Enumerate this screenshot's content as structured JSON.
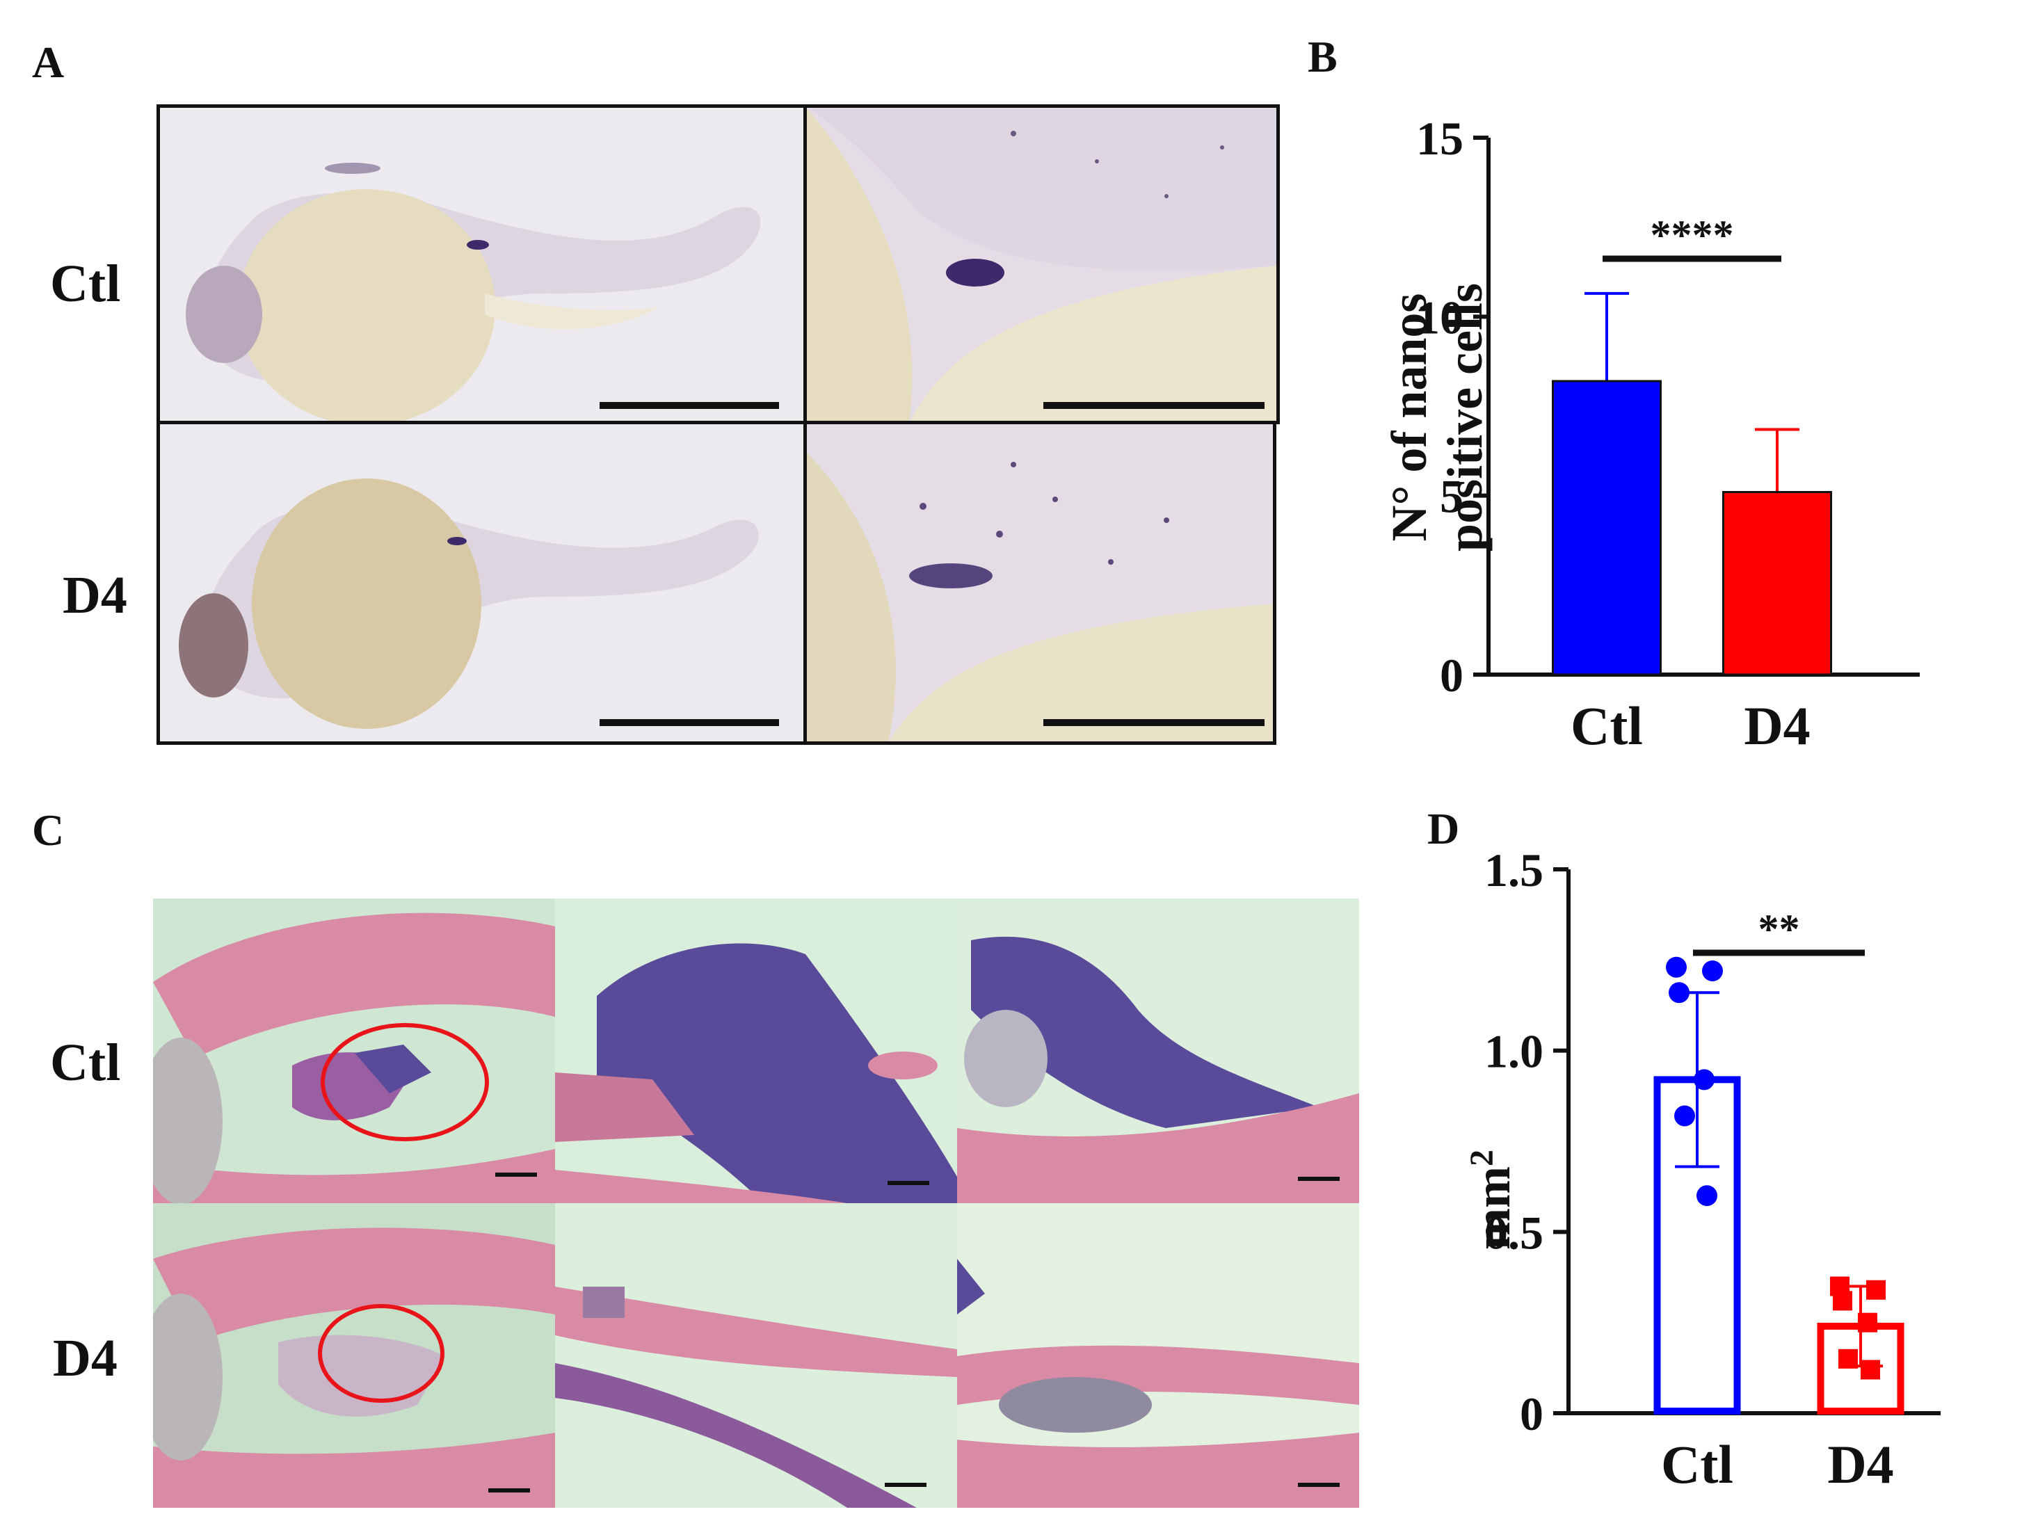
{
  "panels": {
    "a": {
      "letter": "A",
      "rows": [
        "Ctl",
        "D4"
      ]
    },
    "b": {
      "letter": "B"
    },
    "c": {
      "letter": "C",
      "rows": [
        "Ctl",
        "D4"
      ]
    },
    "d": {
      "letter": "D"
    }
  },
  "colors": {
    "ctl": "#0000ff",
    "d4": "#ff0000",
    "annotation": "#e8141a",
    "embryo_bg": "#ecebef",
    "yolk": "#e6dbbd",
    "embryo_tissue": "#d8cdd8",
    "stain": "#3c2a6a",
    "histo_bg": "#d6ecd8",
    "muscle": "#d98aa5",
    "gonad": "#5a4a9a"
  },
  "chart_data": [
    {
      "id": "B",
      "type": "bar",
      "categories": [
        "Ctl",
        "D4"
      ],
      "values": [
        8.2,
        5.1
      ],
      "errors": [
        2.45,
        1.75
      ],
      "bar_colors": [
        "#0000ff",
        "#ff0000"
      ],
      "filled": true,
      "ylabel_lines": [
        "N° of nanos",
        "positive cells"
      ],
      "ylim": [
        0,
        15
      ],
      "yticks": [
        0,
        5,
        10,
        15
      ],
      "ytick_labels": [
        "0",
        "5",
        "10",
        "15"
      ],
      "significance": "****",
      "grid": false
    },
    {
      "id": "D",
      "type": "bar",
      "categories": [
        "Ctl",
        "D4"
      ],
      "values": [
        0.92,
        0.24
      ],
      "errors": [
        0.24,
        0.11
      ],
      "bar_colors": [
        "#0000ff",
        "#ff0000"
      ],
      "filled": false,
      "ylabel": "mm",
      "ylabel_sup": "2",
      "ylim": [
        0,
        1.5
      ],
      "yticks": [
        0,
        0.5,
        1.0,
        1.5
      ],
      "ytick_labels": [
        "0",
        "0.5",
        "1.0",
        "1.5"
      ],
      "points": [
        [
          1.23,
          1.22,
          1.16,
          0.92,
          0.82,
          0.6
        ],
        [
          0.35,
          0.34,
          0.31,
          0.25,
          0.15,
          0.12
        ]
      ],
      "point_markers": [
        "circle",
        "square"
      ],
      "significance": "**",
      "grid": false
    }
  ]
}
